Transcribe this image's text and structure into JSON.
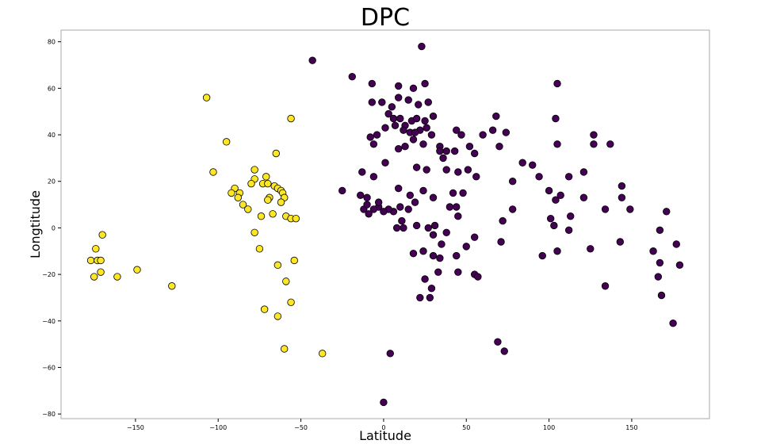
{
  "chart_data": {
    "type": "scatter",
    "title": "DPC",
    "xlabel": "Latitude",
    "ylabel": "Longtitude",
    "xlim": [
      -195,
      197
    ],
    "ylim": [
      -82,
      85
    ],
    "xticks": [
      -150,
      -100,
      -50,
      0,
      50,
      100,
      150
    ],
    "yticks": [
      -80,
      -60,
      -40,
      -20,
      0,
      20,
      40,
      60,
      80
    ],
    "grid": false,
    "legend": "none",
    "colors": {
      "purple": "#440154",
      "yellow": "#fde725",
      "edge": "#000000",
      "frame": "#aaaaaa"
    },
    "series": [
      {
        "color": "purple",
        "points": [
          [
            -43,
            72
          ],
          [
            23,
            78
          ],
          [
            -19,
            65
          ],
          [
            105,
            62
          ],
          [
            -7,
            62
          ],
          [
            9,
            61
          ],
          [
            25,
            62
          ],
          [
            18,
            60
          ],
          [
            -7,
            54
          ],
          [
            -1,
            54
          ],
          [
            5,
            52
          ],
          [
            9,
            56
          ],
          [
            15,
            55
          ],
          [
            21,
            53
          ],
          [
            27,
            54
          ],
          [
            3,
            49
          ],
          [
            6,
            47
          ],
          [
            10,
            47
          ],
          [
            13,
            44
          ],
          [
            17,
            46
          ],
          [
            20,
            47
          ],
          [
            25,
            46
          ],
          [
            30,
            48
          ],
          [
            -8,
            39
          ],
          [
            -6,
            36
          ],
          [
            -4,
            40
          ],
          [
            1,
            43
          ],
          [
            7,
            44
          ],
          [
            12,
            42
          ],
          [
            16,
            41
          ],
          [
            22,
            42
          ],
          [
            26,
            43
          ],
          [
            19,
            41
          ],
          [
            9,
            34
          ],
          [
            13,
            35
          ],
          [
            18,
            38
          ],
          [
            24,
            36
          ],
          [
            29,
            40
          ],
          [
            34,
            35
          ],
          [
            38,
            33
          ],
          [
            43,
            33
          ],
          [
            47,
            40
          ],
          [
            44,
            42
          ],
          [
            52,
            35
          ],
          [
            55,
            32
          ],
          [
            60,
            40
          ],
          [
            66,
            42
          ],
          [
            68,
            48
          ],
          [
            70,
            35
          ],
          [
            74,
            41
          ],
          [
            38,
            25
          ],
          [
            45,
            24
          ],
          [
            51,
            25
          ],
          [
            56,
            22
          ],
          [
            -25,
            16
          ],
          [
            -14,
            14
          ],
          [
            -10,
            13
          ],
          [
            -13,
            24
          ],
          [
            -6,
            22
          ],
          [
            1,
            28
          ],
          [
            9,
            17
          ],
          [
            16,
            14
          ],
          [
            20,
            26
          ],
          [
            26,
            25
          ],
          [
            34,
            33
          ],
          [
            36,
            30
          ],
          [
            42,
            15
          ],
          [
            48,
            15
          ],
          [
            44,
            9
          ],
          [
            40,
            9
          ],
          [
            30,
            13
          ],
          [
            24,
            16
          ],
          [
            19,
            11
          ],
          [
            15,
            8
          ],
          [
            11,
            3
          ],
          [
            6,
            7
          ],
          [
            3,
            8
          ],
          [
            0,
            7
          ],
          [
            -3,
            9
          ],
          [
            -6,
            8
          ],
          [
            -9,
            6
          ],
          [
            -12,
            8
          ],
          [
            -10,
            10
          ],
          [
            -3,
            11
          ],
          [
            10,
            9
          ],
          [
            8,
            0
          ],
          [
            12,
            0
          ],
          [
            20,
            1
          ],
          [
            27,
            0
          ],
          [
            31,
            1
          ],
          [
            30,
            -3
          ],
          [
            38,
            -2
          ],
          [
            45,
            5
          ],
          [
            35,
            -7
          ],
          [
            18,
            -11
          ],
          [
            24,
            -10
          ],
          [
            30,
            -12
          ],
          [
            34,
            -13
          ],
          [
            44,
            -12
          ],
          [
            50,
            -8
          ],
          [
            55,
            -4
          ],
          [
            33,
            -19
          ],
          [
            25,
            -22
          ],
          [
            29,
            -26
          ],
          [
            22,
            -30
          ],
          [
            28,
            -30
          ],
          [
            45,
            -19
          ],
          [
            55,
            -20
          ],
          [
            57,
            -21
          ],
          [
            71,
            -6
          ],
          [
            72,
            3
          ],
          [
            78,
            8
          ],
          [
            78,
            20
          ],
          [
            84,
            28
          ],
          [
            90,
            27
          ],
          [
            94,
            22
          ],
          [
            100,
            16
          ],
          [
            104,
            12
          ],
          [
            107,
            14
          ],
          [
            103,
            1
          ],
          [
            101,
            4
          ],
          [
            113,
            5
          ],
          [
            112,
            -1
          ],
          [
            121,
            13
          ],
          [
            121,
            24
          ],
          [
            112,
            22
          ],
          [
            127,
            40
          ],
          [
            127,
            36
          ],
          [
            137,
            36
          ],
          [
            105,
            36
          ],
          [
            104,
            47
          ],
          [
            144,
            13
          ],
          [
            144,
            18
          ],
          [
            149,
            8
          ],
          [
            134,
            8
          ],
          [
            143,
            -6
          ],
          [
            125,
            -9
          ],
          [
            105,
            -10
          ],
          [
            96,
            -12
          ],
          [
            163,
            -10
          ],
          [
            166,
            -21
          ],
          [
            167,
            -15
          ],
          [
            167,
            -1
          ],
          [
            171,
            7
          ],
          [
            177,
            -7
          ],
          [
            179,
            -16
          ],
          [
            168,
            -29
          ],
          [
            175,
            -41
          ],
          [
            134,
            -25
          ],
          [
            69,
            -49
          ],
          [
            73,
            -53
          ],
          [
            4,
            -54
          ],
          [
            0,
            -75
          ]
        ]
      },
      {
        "color": "yellow",
        "points": [
          [
            -107,
            56
          ],
          [
            -56,
            47
          ],
          [
            -95,
            37
          ],
          [
            -65,
            32
          ],
          [
            -103,
            24
          ],
          [
            -78,
            25
          ],
          [
            -71,
            22
          ],
          [
            -78,
            21
          ],
          [
            -90,
            17
          ],
          [
            -87,
            15
          ],
          [
            -92,
            15
          ],
          [
            -88,
            13
          ],
          [
            -80,
            19
          ],
          [
            -73,
            19
          ],
          [
            -70,
            19
          ],
          [
            -66,
            18
          ],
          [
            -64,
            17
          ],
          [
            -62,
            16
          ],
          [
            -61,
            15
          ],
          [
            -60,
            13
          ],
          [
            -62,
            11
          ],
          [
            -69,
            13
          ],
          [
            -70,
            12
          ],
          [
            -85,
            10
          ],
          [
            -82,
            8
          ],
          [
            -67,
            6
          ],
          [
            -74,
            5
          ],
          [
            -59,
            5
          ],
          [
            -56,
            4
          ],
          [
            -53,
            4
          ],
          [
            -78,
            -2
          ],
          [
            -75,
            -9
          ],
          [
            -54,
            -14
          ],
          [
            -64,
            -16
          ],
          [
            -59,
            -23
          ],
          [
            -72,
            -35
          ],
          [
            -56,
            -32
          ],
          [
            -64,
            -38
          ],
          [
            -60,
            -52
          ],
          [
            -37,
            -54
          ],
          [
            -170,
            -3
          ],
          [
            -174,
            -9
          ],
          [
            -177,
            -14
          ],
          [
            -173,
            -14
          ],
          [
            -171,
            -14
          ],
          [
            -175,
            -21
          ],
          [
            -171,
            -19
          ],
          [
            -161,
            -21
          ],
          [
            -149,
            -18
          ],
          [
            -128,
            -25
          ]
        ]
      }
    ]
  }
}
